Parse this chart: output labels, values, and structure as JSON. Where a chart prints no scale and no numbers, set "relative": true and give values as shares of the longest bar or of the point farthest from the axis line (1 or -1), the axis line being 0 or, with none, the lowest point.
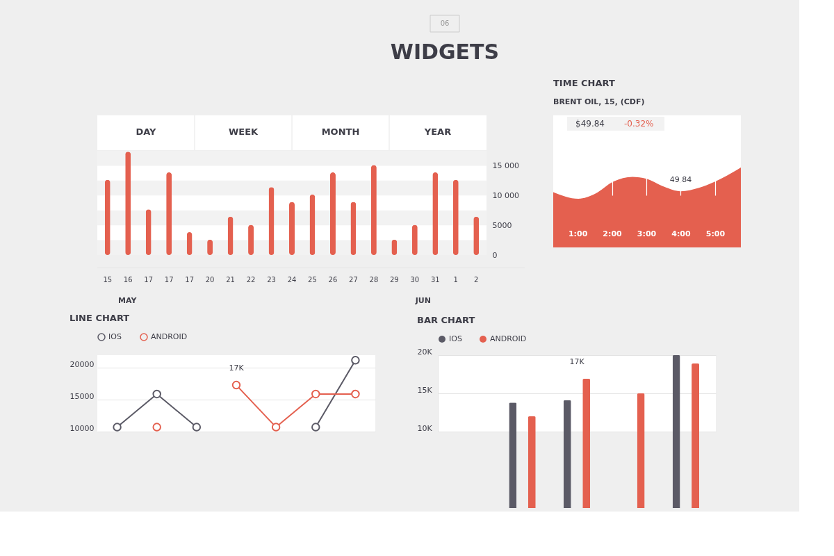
{
  "chart_data": [
    {
      "type": "other",
      "title": "WIDGETS",
      "annotations": [
        "06"
      ]
    },
    {
      "type": "other",
      "annotations": [
        "DAY",
        "WEEK",
        "MONTH",
        "YEAR"
      ]
    },
    {
      "type": "bar",
      "categories": [
        "15",
        "16",
        "17",
        "17",
        "17",
        "20",
        "21",
        "22",
        "23",
        "24",
        "25",
        "26",
        "27",
        "28",
        "29",
        "30",
        "31",
        "1",
        "2"
      ],
      "values": [
        12640,
        17350,
        7680,
        13880,
        3840,
        2600,
        6440,
        5080,
        11400,
        8920,
        10160,
        13880,
        8920,
        15120,
        2600,
        5080,
        13880,
        12640,
        6440
      ],
      "color": "#e4604f",
      "ylim": [
        0,
        17500
      ],
      "yticks": [
        {
          "value": 0,
          "label": "0"
        },
        {
          "value": 5000,
          "label": "5000"
        },
        {
          "value": 10000,
          "label": "10 000"
        },
        {
          "value": 15000,
          "label": "15 000"
        }
      ],
      "bands": [
        {
          "axis": "y",
          "from": 0,
          "to": 2500,
          "color": "#f2f2f2"
        },
        {
          "axis": "y",
          "from": 5000,
          "to": 7500,
          "color": "#f2f2f2"
        },
        {
          "axis": "y",
          "from": 10000,
          "to": 12500,
          "color": "#f2f2f2"
        },
        {
          "axis": "y",
          "from": 15000,
          "to": 17500,
          "color": "#f2f2f2"
        }
      ],
      "annotations": [
        "MAY",
        "JUN"
      ]
    },
    {
      "type": "area",
      "title": "TIME CHART",
      "subtitle": "BRENT OIL, 15, (CDF)",
      "relative": true,
      "color": "#e4604f",
      "x": [
        0.29,
        1.02,
        1.51,
        2.04,
        2.6,
        3.0,
        3.51,
        4.0,
        4.53,
        5.0,
        5.75
      ],
      "values": [
        0.21,
        0,
        0.16,
        0.55,
        0.7,
        0.64,
        0.39,
        0.24,
        0.35,
        0.55,
        1
      ],
      "xlim": [
        0.29,
        5.75
      ],
      "xticks": [
        {
          "value": 1,
          "label": "1:00"
        },
        {
          "value": 2,
          "label": "2:00"
        },
        {
          "value": 3,
          "label": "3:00"
        },
        {
          "value": 4,
          "label": "4:00"
        },
        {
          "value": 5,
          "label": "5:00"
        }
      ],
      "grid": "x",
      "annotations": [
        "$49.84",
        "-0.32%",
        {
          "text": "49,84",
          "x": 4.0,
          "y": 0.24
        }
      ]
    },
    {
      "type": "line",
      "title": "LINE CHART",
      "categories": [
        null,
        null,
        null,
        null,
        null,
        null,
        null
      ],
      "series": [
        {
          "name": "IOS",
          "color": "#5b5a66",
          "values": [
            10700,
            15900,
            10700,
            null,
            null,
            10700,
            21200
          ]
        },
        {
          "name": "ANDROID",
          "color": "#e4604f",
          "values": [
            null,
            10700,
            null,
            17300,
            10700,
            15900,
            15900
          ],
          "value_labels": [
            null,
            null,
            null,
            "17K",
            null,
            null,
            null
          ]
        }
      ],
      "ylim": [
        10000,
        22000
      ],
      "yticks": [
        10000,
        15000,
        20000
      ],
      "grid": "y",
      "legend": "top left",
      "marker": "circle",
      "line_style": "solid"
    },
    {
      "type": "bar",
      "title": "BAR CHART",
      "categories": [
        null,
        null,
        null,
        null,
        null
      ],
      "series": [
        {
          "name": "IOS",
          "color": "#5b5a66",
          "values": [
            null,
            13800,
            14100,
            null,
            20000
          ]
        },
        {
          "name": "ANDROID",
          "color": "#e4604f",
          "values": [
            null,
            12000,
            16900,
            15000,
            18900
          ],
          "value_labels": [
            null,
            null,
            "17K",
            null,
            null
          ]
        }
      ],
      "ylim": [
        10000,
        20000
      ],
      "yticks": [
        {
          "value": 10000,
          "label": "10K"
        },
        {
          "value": 15000,
          "label": "15K"
        },
        {
          "value": 20000,
          "label": "20K"
        }
      ],
      "grid": "y",
      "legend": "top left"
    }
  ]
}
